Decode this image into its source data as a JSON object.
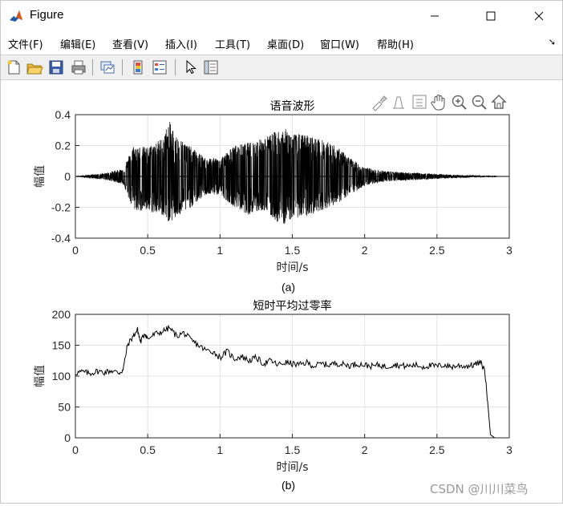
{
  "window": {
    "title": "Figure"
  },
  "menu": [
    {
      "label": "文件(F)",
      "key": "F"
    },
    {
      "label": "编辑(E)",
      "key": "E"
    },
    {
      "label": "查看(V)",
      "key": "V"
    },
    {
      "label": "插入(I)",
      "key": "I"
    },
    {
      "label": "工具(T)",
      "key": "T"
    },
    {
      "label": "桌面(D)",
      "key": "D"
    },
    {
      "label": "窗口(W)",
      "key": "W"
    },
    {
      "label": "帮助(H)",
      "key": "H"
    }
  ],
  "toolbar": [
    "new-figure-icon",
    "open-file-icon",
    "save-icon",
    "print-icon",
    "link-plot-icon",
    "insert-colorbar-icon",
    "insert-legend-icon",
    "select-arrow-icon",
    "property-inspector-icon"
  ],
  "axes_toolbar": [
    "brush-icon",
    "data-tips-icon",
    "legend-toggle-icon",
    "pan-icon",
    "zoom-in-icon",
    "zoom-out-icon",
    "home-icon"
  ],
  "chart_data": [
    {
      "type": "line",
      "title": "语音波形",
      "xlabel": "时间/s",
      "ylabel": "幅值",
      "caption": "(a)",
      "xlim": [
        0,
        3
      ],
      "ylim": [
        -0.4,
        0.4
      ],
      "xticks": [
        "0",
        "0.5",
        "1",
        "1.5",
        "2",
        "2.5",
        "3"
      ],
      "yticks": [
        "-0.4",
        "-0.2",
        "0",
        "0.2",
        "0.4"
      ],
      "grid": true,
      "envelope": {
        "t": [
          0,
          0.2,
          0.33,
          0.4,
          0.5,
          0.6,
          0.65,
          0.7,
          0.8,
          0.9,
          1.0,
          1.1,
          1.2,
          1.3,
          1.4,
          1.45,
          1.5,
          1.6,
          1.7,
          1.8,
          1.9,
          2.0,
          2.1,
          2.2,
          2.4,
          2.6,
          2.8,
          2.95
        ],
        "pos": [
          0,
          0.02,
          0.05,
          0.2,
          0.19,
          0.25,
          0.36,
          0.26,
          0.19,
          0.12,
          0.12,
          0.2,
          0.22,
          0.25,
          0.3,
          0.31,
          0.28,
          0.27,
          0.24,
          0.2,
          0.12,
          0.06,
          0.04,
          0.03,
          0.02,
          0.01,
          0.005,
          0
        ],
        "neg": [
          0,
          -0.02,
          -0.05,
          -0.22,
          -0.23,
          -0.25,
          -0.3,
          -0.27,
          -0.2,
          -0.12,
          -0.12,
          -0.2,
          -0.25,
          -0.22,
          -0.3,
          -0.31,
          -0.27,
          -0.26,
          -0.22,
          -0.18,
          -0.12,
          -0.06,
          -0.04,
          -0.03,
          -0.02,
          -0.01,
          -0.005,
          0
        ]
      }
    },
    {
      "type": "line",
      "title": "短时平均过零率",
      "xlabel": "时间/s",
      "ylabel": "幅值",
      "caption": "(b)",
      "xlim": [
        0,
        3
      ],
      "ylim": [
        0,
        200
      ],
      "xticks": [
        "0",
        "0.5",
        "1",
        "1.5",
        "2",
        "2.5",
        "3"
      ],
      "yticks": [
        "0",
        "50",
        "100",
        "150",
        "200"
      ],
      "grid": true,
      "x": [
        0,
        0.05,
        0.1,
        0.15,
        0.2,
        0.25,
        0.3,
        0.33,
        0.36,
        0.4,
        0.43,
        0.45,
        0.48,
        0.5,
        0.55,
        0.6,
        0.65,
        0.7,
        0.75,
        0.8,
        0.85,
        0.9,
        0.95,
        1.0,
        1.05,
        1.1,
        1.15,
        1.2,
        1.25,
        1.3,
        1.35,
        1.4,
        1.45,
        1.5,
        1.55,
        1.6,
        1.65,
        1.7,
        1.75,
        1.8,
        1.85,
        1.9,
        1.95,
        2.0,
        2.05,
        2.1,
        2.15,
        2.2,
        2.25,
        2.3,
        2.35,
        2.4,
        2.45,
        2.5,
        2.55,
        2.6,
        2.65,
        2.7,
        2.75,
        2.8,
        2.83,
        2.85,
        2.87,
        2.9,
        2.95
      ],
      "y": [
        105,
        107,
        104,
        108,
        106,
        109,
        105,
        110,
        150,
        165,
        175,
        155,
        170,
        160,
        168,
        172,
        178,
        165,
        170,
        158,
        150,
        142,
        140,
        130,
        140,
        128,
        132,
        125,
        130,
        120,
        125,
        118,
        122,
        120,
        118,
        122,
        116,
        120,
        118,
        121,
        119,
        117,
        120,
        118,
        116,
        118,
        115,
        119,
        117,
        116,
        118,
        115,
        117,
        116,
        118,
        115,
        117,
        116,
        118,
        122,
        110,
        60,
        5,
        0,
        0
      ]
    }
  ],
  "watermark": "CSDN @川川菜鸟"
}
